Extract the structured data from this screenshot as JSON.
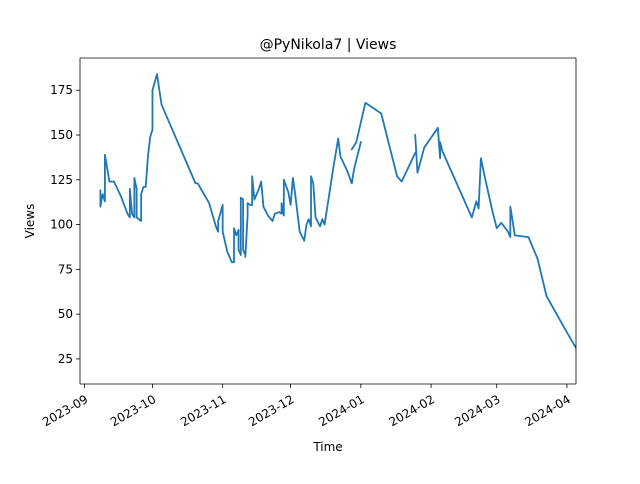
{
  "chart_data": {
    "type": "line",
    "title": "@PyNikola7 | Views",
    "xlabel": "Time",
    "ylabel": "Views",
    "x_axis_type": "date",
    "xlim": [
      "2023-08-30",
      "2024-04-05"
    ],
    "ylim": [
      11,
      193
    ],
    "x_ticks": [
      "2023-09",
      "2023-10",
      "2023-11",
      "2023-12",
      "2024-01",
      "2024-02",
      "2024-03",
      "2024-04"
    ],
    "y_ticks": [
      25,
      50,
      75,
      100,
      125,
      150,
      175
    ],
    "grid": false,
    "legend": "none",
    "series": [
      {
        "color": "#1f77b4",
        "segments": [
          [
            [
              "2023-09-08",
              119
            ],
            [
              "2023-09-08",
              110
            ],
            [
              "2023-09-09",
              117
            ],
            [
              "2023-09-10",
              113
            ],
            [
              "2023-09-10",
              139
            ],
            [
              "2023-09-12",
              124
            ],
            [
              "2023-09-14",
              124
            ],
            [
              "2023-09-17",
              116
            ],
            [
              "2023-09-20",
              106
            ],
            [
              "2023-09-21",
              104
            ],
            [
              "2023-09-21",
              120
            ],
            [
              "2023-09-22",
              106
            ],
            [
              "2023-09-23",
              104
            ],
            [
              "2023-09-23",
              126
            ],
            [
              "2023-09-24",
              120
            ],
            [
              "2023-09-24",
              104
            ],
            [
              "2023-09-26",
              102
            ],
            [
              "2023-09-26",
              117
            ],
            [
              "2023-09-27",
              121
            ],
            [
              "2023-09-28",
              121
            ],
            [
              "2023-09-29",
              138
            ],
            [
              "2023-09-30",
              149
            ],
            [
              "2023-10-01",
              153
            ],
            [
              "2023-10-01",
              175
            ],
            [
              "2023-10-03",
              184
            ],
            [
              "2023-10-05",
              167
            ],
            [
              "2023-10-20",
              123
            ],
            [
              "2023-10-21",
              123
            ],
            [
              "2023-10-26",
              112
            ],
            [
              "2023-10-29",
              99
            ],
            [
              "2023-10-30",
              96
            ],
            [
              "2023-10-30",
              102
            ],
            [
              "2023-11-01",
              111
            ],
            [
              "2023-11-01",
              96
            ],
            [
              "2023-11-03",
              85
            ],
            [
              "2023-11-04",
              82
            ],
            [
              "2023-11-05",
              79
            ],
            [
              "2023-11-06",
              79
            ],
            [
              "2023-11-06",
              98
            ],
            [
              "2023-11-07",
              94
            ],
            [
              "2023-11-08",
              97
            ],
            [
              "2023-11-08",
              86
            ],
            [
              "2023-11-09",
              83
            ],
            [
              "2023-11-09",
              115
            ],
            [
              "2023-11-10",
              114
            ],
            [
              "2023-11-10",
              86
            ],
            [
              "2023-11-11",
              83
            ],
            [
              "2023-11-11",
              82
            ],
            [
              "2023-11-12",
              105
            ],
            [
              "2023-11-12",
              112
            ],
            [
              "2023-11-13",
              111
            ],
            [
              "2023-11-14",
              111
            ],
            [
              "2023-11-14",
              127
            ],
            [
              "2023-11-15",
              114
            ],
            [
              "2023-11-17",
              120
            ],
            [
              "2023-11-18",
              124
            ],
            [
              "2023-11-19",
              110
            ],
            [
              "2023-11-21",
              105
            ],
            [
              "2023-11-23",
              102
            ],
            [
              "2023-11-24",
              106
            ],
            [
              "2023-11-26",
              107
            ],
            [
              "2023-11-27",
              106
            ],
            [
              "2023-11-27",
              112
            ],
            [
              "2023-11-28",
              105
            ],
            [
              "2023-11-28",
              125
            ],
            [
              "2023-11-30",
              118
            ],
            [
              "2023-12-01",
              111
            ],
            [
              "2023-12-02",
              126
            ],
            [
              "2023-12-03",
              117
            ],
            [
              "2023-12-05",
              96
            ],
            [
              "2023-12-07",
              91
            ],
            [
              "2023-12-08",
              100
            ],
            [
              "2023-12-09",
              103
            ],
            [
              "2023-12-10",
              99
            ],
            [
              "2023-12-10",
              127
            ],
            [
              "2023-12-11",
              123
            ],
            [
              "2023-12-12",
              104
            ],
            [
              "2023-12-14",
              99
            ],
            [
              "2023-12-15",
              103
            ],
            [
              "2023-12-16",
              100
            ],
            [
              "2023-12-20",
              133
            ],
            [
              "2023-12-22",
              148
            ],
            [
              "2023-12-23",
              138
            ],
            [
              "2023-12-26",
              130
            ],
            [
              "2023-12-28",
              123
            ],
            [
              "2023-12-29",
              131
            ],
            [
              "2024-01-01",
              146
            ]
          ],
          [
            [
              "2023-12-28",
              142
            ],
            [
              "2023-12-30",
              146
            ],
            [
              "2024-01-03",
              168
            ],
            [
              "2024-01-10",
              162
            ],
            [
              "2024-01-17",
              127
            ],
            [
              "2024-01-19",
              124
            ],
            [
              "2024-01-25",
              140
            ]
          ],
          [
            [
              "2024-01-25",
              150
            ],
            [
              "2024-01-26",
              129
            ],
            [
              "2024-01-29",
              143
            ],
            [
              "2024-02-04",
              154
            ],
            [
              "2024-02-05",
              137
            ],
            [
              "2024-02-05",
              146
            ],
            [
              "2024-02-06",
              141
            ],
            [
              "2024-02-19",
              104
            ],
            [
              "2024-02-21",
              113
            ],
            [
              "2024-02-22",
              109
            ],
            [
              "2024-02-23",
              137
            ],
            [
              "2024-02-25",
              125
            ],
            [
              "2024-02-28",
              108
            ],
            [
              "2024-03-01",
              98
            ],
            [
              "2024-03-03",
              101
            ],
            [
              "2024-03-06",
              96
            ],
            [
              "2024-03-07",
              93
            ],
            [
              "2024-03-07",
              110
            ],
            [
              "2024-03-09",
              94
            ],
            [
              "2024-03-15",
              93
            ],
            [
              "2024-03-19",
              81
            ],
            [
              "2024-03-23",
              60
            ],
            [
              "2024-03-31",
              42
            ],
            [
              "2024-04-11",
              18
            ]
          ]
        ]
      }
    ]
  }
}
